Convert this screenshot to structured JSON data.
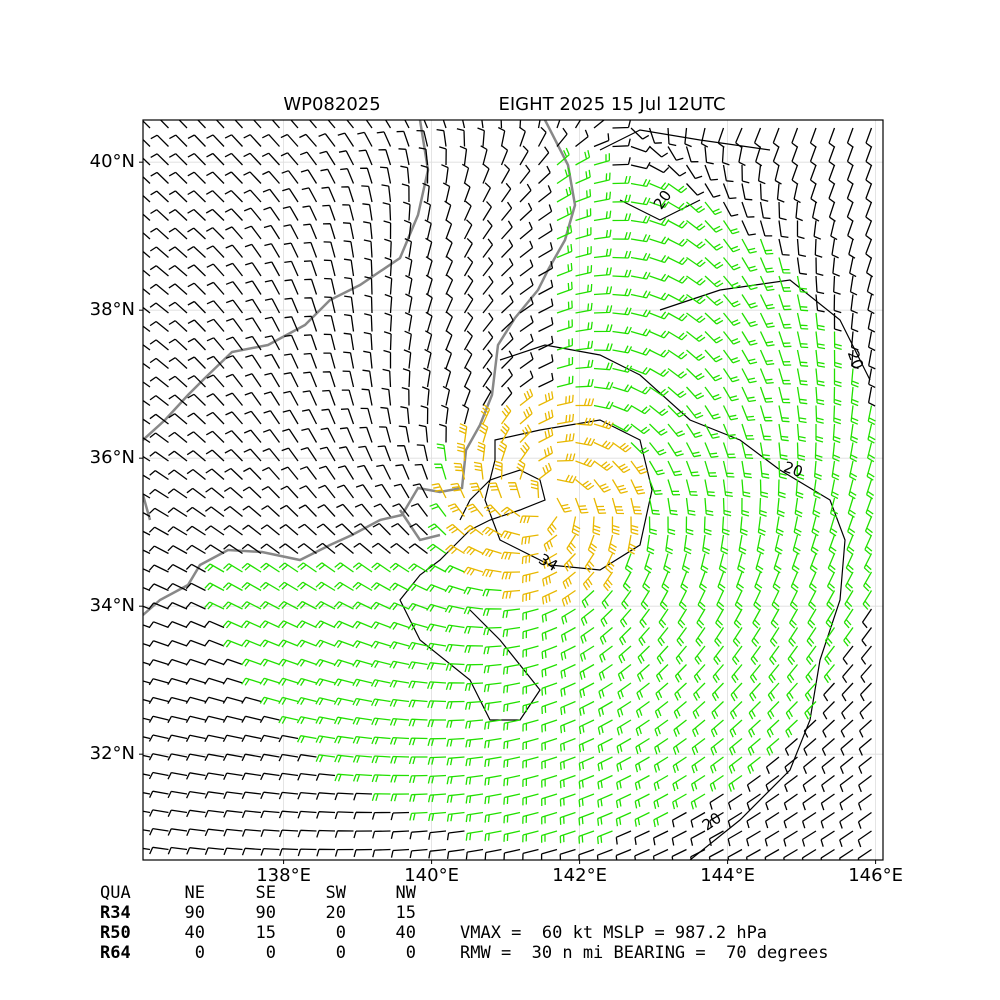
{
  "chart_data": {
    "type": "wind-map",
    "title_left": "WP082025",
    "title_right": "EIGHT 2025 15 Jul 12UTC",
    "xlim": [
      136.1,
      146.1
    ],
    "ylim": [
      30.57,
      40.57
    ],
    "xticks": [
      {
        "value": 138,
        "label": "138°E"
      },
      {
        "value": 140,
        "label": "140°E"
      },
      {
        "value": 142,
        "label": "142°E"
      },
      {
        "value": 144,
        "label": "144°E"
      },
      {
        "value": 146,
        "label": "146°E"
      }
    ],
    "yticks": [
      {
        "value": 32,
        "label": "32°N"
      },
      {
        "value": 34,
        "label": "34°N"
      },
      {
        "value": 36,
        "label": "36°N"
      },
      {
        "value": 38,
        "label": "38°N"
      },
      {
        "value": 40,
        "label": "40°N"
      }
    ],
    "grid": true,
    "contour_labels": [
      20,
      20,
      20,
      20,
      34
    ]
  },
  "table": {
    "header": [
      "QUA",
      "NE",
      "SE",
      "SW",
      "NW"
    ],
    "rows": [
      [
        "R34",
        90,
        90,
        20,
        15
      ],
      [
        "R50",
        40,
        15,
        0,
        40
      ],
      [
        "R64",
        0,
        0,
        0,
        0
      ]
    ]
  },
  "stats": [
    "VMAX =  60 kt MSLP = 987.2 hPa",
    "RMW =  30 n mi BEARING =  70 degrees"
  ]
}
